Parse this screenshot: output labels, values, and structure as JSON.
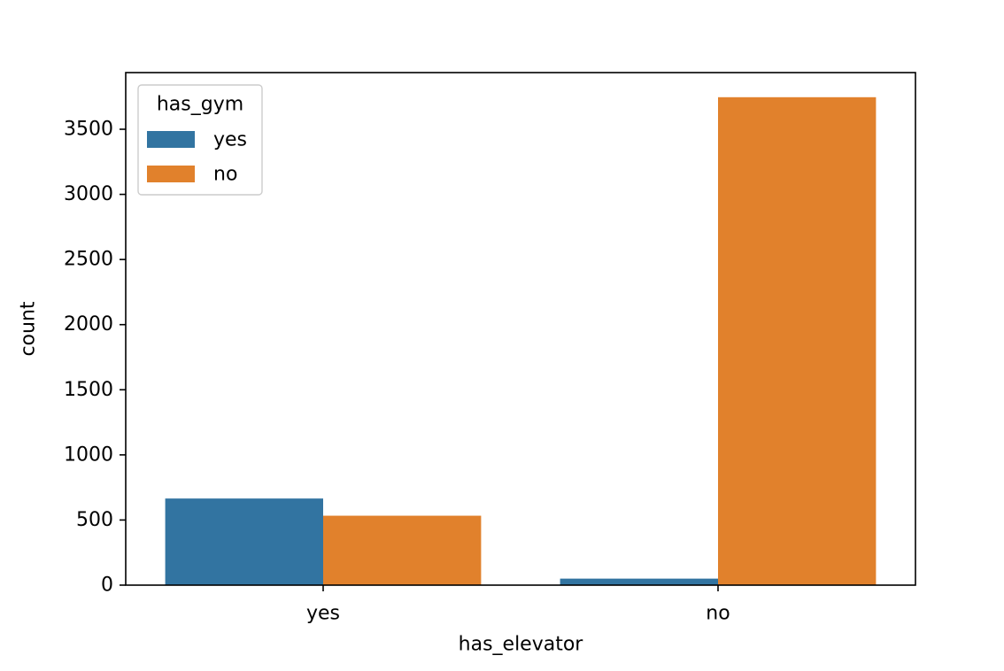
{
  "chart_data": {
    "type": "bar",
    "categories": [
      "yes",
      "no"
    ],
    "series": [
      {
        "name": "yes",
        "values": [
          665,
          50
        ],
        "color": "#3274a1"
      },
      {
        "name": "no",
        "values": [
          533,
          3746
        ],
        "color": "#e1812c"
      }
    ],
    "xlabel": "has_elevator",
    "ylabel": "count",
    "ylim": [
      0,
      3935
    ],
    "yticks": [
      0,
      500,
      1000,
      1500,
      2000,
      2500,
      3000,
      3500
    ],
    "grid": false,
    "legend": {
      "title": "has_gym",
      "placement": "top-left"
    }
  }
}
